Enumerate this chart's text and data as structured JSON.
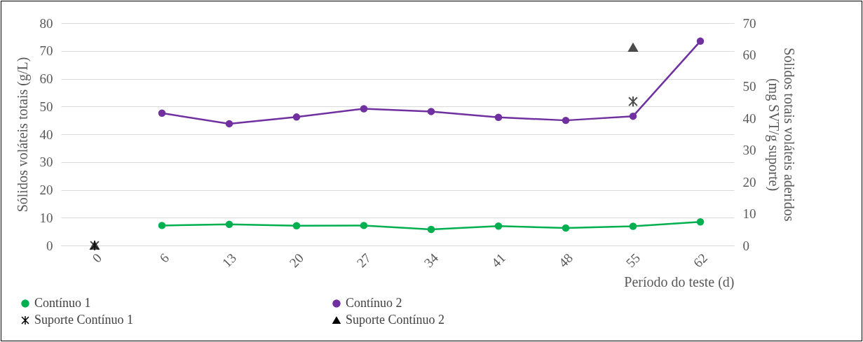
{
  "chart_data": {
    "type": "line",
    "xlabel": "Período do teste (d)",
    "ylabel": "Sólidos voláteis totais (g/L)",
    "y2label": "Sólidos totais voláteis aderidos\n(mg SVT/g suporte)",
    "categories": [
      "0",
      "6",
      "13",
      "20",
      "27",
      "34",
      "41",
      "48",
      "55",
      "62"
    ],
    "series": [
      {
        "name": "Contínuo 1",
        "color": "#00b050",
        "values": [
          null,
          7.2,
          7.6,
          7.1,
          7.2,
          5.8,
          7.0,
          6.3,
          6.9,
          8.5
        ]
      },
      {
        "name": "Contínuo 2",
        "color": "#7030a0",
        "values": [
          null,
          47.6,
          43.8,
          46.2,
          49.2,
          48.2,
          46.1,
          45.0,
          46.5,
          73.5
        ]
      },
      {
        "name": "Suporte Contínuo 1",
        "type": "scatter",
        "axis": "y2",
        "marker": "cross",
        "color": "#000000",
        "x": [
          "0",
          "55"
        ],
        "values": [
          0,
          45.3
        ]
      },
      {
        "name": "Suporte Contínuo 2",
        "type": "scatter",
        "axis": "y2",
        "marker": "triangle",
        "color": "#000000",
        "x": [
          "0",
          "55"
        ],
        "values": [
          0,
          62.3
        ]
      }
    ],
    "ylim": [
      0,
      80
    ],
    "yticks": [
      0,
      10,
      20,
      30,
      40,
      50,
      60,
      70,
      80
    ],
    "y2lim": [
      0,
      70
    ],
    "y2ticks": [
      0,
      10,
      20,
      30,
      40,
      50,
      60,
      70
    ],
    "grid": "y",
    "marker": "circle",
    "legend": "bottom left"
  }
}
